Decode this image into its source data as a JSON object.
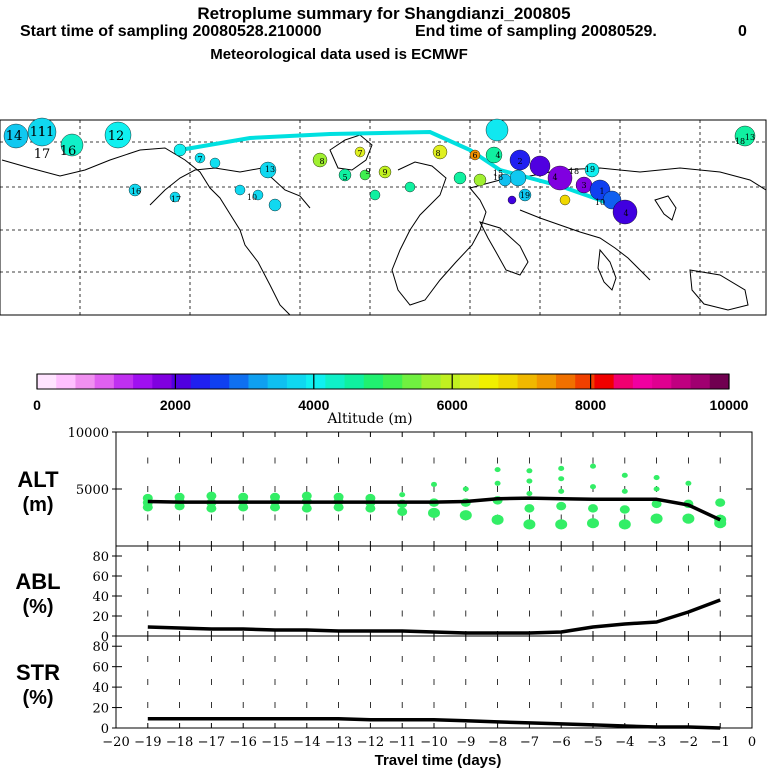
{
  "header": {
    "title": "Retroplume summary for Shangdianzi_200805",
    "start_label": "Start time of sampling 20080528.210000",
    "end_label": "End time of sampling 20080529.",
    "end_suffix": "0",
    "met_label": "Meteorological data used is ECMWF"
  },
  "colors": {
    "accent": "#00e0e0",
    "marker": "#33ee66",
    "line": "#000000"
  },
  "colorbar": {
    "title": "Altitude (m)",
    "tick_labels": [
      "0",
      "2000",
      "4000",
      "6000",
      "8000",
      "10000"
    ],
    "colors": [
      "#ffe4ff",
      "#ffc0ff",
      "#f090f0",
      "#e060f0",
      "#c030f0",
      "#a010f0",
      "#8000e0",
      "#5000e0",
      "#2020f0",
      "#1040f0",
      "#1070f0",
      "#10a0f0",
      "#10c0f0",
      "#10d8f0",
      "#10f0f0",
      "#10f0c8",
      "#10f0a0",
      "#20f070",
      "#40f050",
      "#70f040",
      "#a0f030",
      "#c0f020",
      "#e0f020",
      "#f0f000",
      "#f0d800",
      "#f0b800",
      "#f09800",
      "#f07000",
      "#f04000",
      "#f00000",
      "#f00070",
      "#f000a0",
      "#e00090",
      "#c00080",
      "#a00070",
      "#700050"
    ]
  },
  "map": {
    "labels": [
      "14",
      "11",
      "11",
      "12",
      "17",
      "16",
      "7",
      "13",
      "9",
      "8",
      "9",
      "5",
      "7",
      "8",
      "6",
      "10",
      "10",
      "16",
      "17",
      "18",
      "19",
      "18",
      "15",
      "16",
      "19",
      "4",
      "2",
      "3",
      "1",
      "4",
      "4",
      "13"
    ]
  },
  "chart_data": [
    {
      "type": "line",
      "panel": "ALT",
      "ylabel_line1": "ALT",
      "ylabel_line2": "(m)",
      "x": [
        -19,
        -18,
        -17,
        -16,
        -15,
        -14,
        -13,
        -12,
        -11,
        -10,
        -9,
        -8,
        -7,
        -6,
        -5,
        -4,
        -3,
        -2,
        -1
      ],
      "values": [
        3900,
        3850,
        3850,
        3850,
        3850,
        3850,
        3850,
        3850,
        3850,
        3850,
        3900,
        4150,
        4200,
        4150,
        4100,
        4100,
        4100,
        3600,
        2300
      ],
      "ylim": [
        0,
        10000
      ],
      "ytick_labels": [
        "5000",
        "10000"
      ],
      "ytick_values": [
        5000,
        10000
      ],
      "scatter": [
        [
          -19,
          3400
        ],
        [
          -19,
          3800
        ],
        [
          -19,
          4200
        ],
        [
          -18,
          3500
        ],
        [
          -18,
          3900
        ],
        [
          -18,
          4300
        ],
        [
          -17,
          3300
        ],
        [
          -17,
          3800
        ],
        [
          -17,
          4400
        ],
        [
          -16,
          3400
        ],
        [
          -16,
          3900
        ],
        [
          -16,
          4300
        ],
        [
          -15,
          3400
        ],
        [
          -15,
          3900
        ],
        [
          -15,
          4300
        ],
        [
          -14,
          3300
        ],
        [
          -14,
          3900
        ],
        [
          -14,
          4400
        ],
        [
          -13,
          3400
        ],
        [
          -13,
          3900
        ],
        [
          -13,
          4300
        ],
        [
          -12,
          3300
        ],
        [
          -12,
          3800
        ],
        [
          -12,
          4200
        ],
        [
          -11,
          3000
        ],
        [
          -11,
          3700
        ],
        [
          -11,
          4500
        ],
        [
          -10,
          2900
        ],
        [
          -10,
          3800
        ],
        [
          -10,
          5400
        ],
        [
          -9,
          2700
        ],
        [
          -9,
          3800
        ],
        [
          -9,
          5000
        ],
        [
          -8,
          2300
        ],
        [
          -8,
          4000
        ],
        [
          -8,
          5500
        ],
        [
          -8,
          6700
        ],
        [
          -7,
          1900
        ],
        [
          -7,
          3300
        ],
        [
          -7,
          4600
        ],
        [
          -7,
          5700
        ],
        [
          -7,
          6600
        ],
        [
          -6,
          1900
        ],
        [
          -6,
          3500
        ],
        [
          -6,
          4800
        ],
        [
          -6,
          5900
        ],
        [
          -6,
          6800
        ],
        [
          -5,
          2000
        ],
        [
          -5,
          3300
        ],
        [
          -5,
          5200
        ],
        [
          -5,
          7000
        ],
        [
          -4,
          1900
        ],
        [
          -4,
          3200
        ],
        [
          -4,
          4800
        ],
        [
          -4,
          6200
        ],
        [
          -3,
          2400
        ],
        [
          -3,
          3700
        ],
        [
          -3,
          5000
        ],
        [
          -3,
          6000
        ],
        [
          -2,
          2400
        ],
        [
          -2,
          3700
        ],
        [
          -2,
          5500
        ],
        [
          -1,
          2000
        ],
        [
          -1,
          2300
        ],
        [
          -1,
          3800
        ]
      ]
    },
    {
      "type": "line",
      "panel": "ABL",
      "ylabel_line1": "ABL",
      "ylabel_line2": "(%)",
      "x": [
        -19,
        -18,
        -17,
        -16,
        -15,
        -14,
        -13,
        -12,
        -11,
        -10,
        -9,
        -8,
        -7,
        -6,
        -5,
        -4,
        -3,
        -2,
        -1
      ],
      "values": [
        9,
        8,
        7,
        7,
        6,
        6,
        5,
        5,
        5,
        4,
        3,
        3,
        3,
        4,
        9,
        12,
        14,
        24,
        36
      ],
      "ylim": [
        0,
        90
      ],
      "ytick_labels": [
        "0",
        "20",
        "40",
        "60",
        "80"
      ],
      "ytick_values": [
        0,
        20,
        40,
        60,
        80
      ]
    },
    {
      "type": "line",
      "panel": "STR",
      "ylabel_line1": "STR",
      "ylabel_line2": "(%)",
      "x": [
        -19,
        -18,
        -17,
        -16,
        -15,
        -14,
        -13,
        -12,
        -11,
        -10,
        -9,
        -8,
        -7,
        -6,
        -5,
        -4,
        -3,
        -2,
        -1
      ],
      "values": [
        9,
        9,
        9,
        9,
        9,
        9,
        9,
        8,
        8,
        8,
        7,
        6,
        5,
        4,
        3,
        2,
        1,
        1,
        0
      ],
      "ylim": [
        0,
        90
      ],
      "ytick_labels": [
        "0",
        "20",
        "40",
        "60",
        "80"
      ],
      "ytick_values": [
        0,
        20,
        40,
        60,
        80
      ]
    }
  ],
  "xaxis": {
    "xlabel": "Travel time (days)",
    "tick_labels": [
      "−20",
      "−19",
      "−18",
      "−17",
      "−16",
      "−15",
      "−14",
      "−13",
      "−12",
      "−11",
      "−10",
      "−9",
      "−8",
      "−7",
      "−6",
      "−5",
      "−4",
      "−3",
      "−2",
      "−1",
      "0"
    ],
    "tick_values": [
      -20,
      -19,
      -18,
      -17,
      -16,
      -15,
      -14,
      -13,
      -12,
      -11,
      -10,
      -9,
      -8,
      -7,
      -6,
      -5,
      -4,
      -3,
      -2,
      -1,
      0
    ]
  }
}
